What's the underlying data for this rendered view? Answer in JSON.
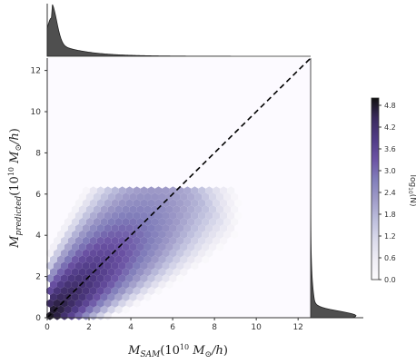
{
  "chart_data": {
    "type": "heatmap",
    "subtype": "hexbin jointplot with marginal distributions",
    "title": "",
    "xlabel": "M_SAM(10^10 M_⊙/h)",
    "ylabel": "M_predicted(10^10 M_⊙/h)",
    "xlim": [
      0,
      12.6
    ],
    "ylim": [
      0,
      12.6
    ],
    "x_ticks": [
      "0",
      "2",
      "4",
      "6",
      "8",
      "10",
      "12"
    ],
    "y_ticks": [
      "0",
      "2",
      "4",
      "6",
      "8",
      "10",
      "12"
    ],
    "reference_line": {
      "style": "dashed",
      "from": [
        0,
        0
      ],
      "to": [
        12.6,
        12.6
      ]
    },
    "colorbar": {
      "label": "log10(N)",
      "range": [
        0,
        5.0
      ],
      "ticks": [
        "0.0",
        "0.6",
        "1.2",
        "1.8",
        "2.4",
        "3.0",
        "3.6",
        "4.2",
        "4.8"
      ],
      "colors": [
        "#fcfbfd",
        "#efedf5",
        "#dadaeb",
        "#bcbddc",
        "#9e9ac8",
        "#807dba",
        "#6a51a3",
        "#4f3a85",
        "#3a2a5e",
        "#111111"
      ]
    },
    "hexbin_density_model": "log10 count peaks near origin and falls off away from y = x line",
    "marginal_x": {
      "peak_x": 0.2,
      "shape": "sharp peak near 0, long right tail"
    },
    "marginal_y": {
      "peak_y": 0.1,
      "shape": "sharp peak near 0, long upward tail"
    },
    "grid": false,
    "legend": "none"
  }
}
